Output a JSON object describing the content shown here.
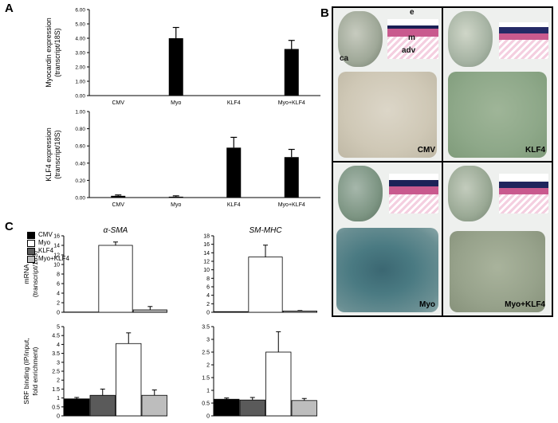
{
  "panels": {
    "a_label": "A",
    "b_label": "B",
    "c_label": "C"
  },
  "colors": {
    "cmv": "#000000",
    "myo": "#ffffff",
    "klf4": "#5a5a5a",
    "myo_klf4": "#bdbdbd"
  },
  "legend": {
    "items": [
      "CMV",
      "Myo",
      "KLF4",
      "Myo+KLF4"
    ]
  },
  "panel_b": {
    "cells": [
      {
        "label": "CMV"
      },
      {
        "label": "KLF4"
      },
      {
        "label": "Myo"
      },
      {
        "label": "Myo+KLF4"
      }
    ],
    "annotations": {
      "e": "e",
      "m": "m",
      "adv": "adv",
      "ca": "ca"
    }
  },
  "chart_data": [
    {
      "id": "a_top",
      "type": "bar",
      "ylabel_line1": "Myocardin expression",
      "ylabel_line2": "(transcript/18S)",
      "categories": [
        "CMV",
        "Myo",
        "KLF4",
        "Myo+KLF4"
      ],
      "values": [
        0.0,
        4.0,
        0.0,
        3.25
      ],
      "errors": [
        0.0,
        0.75,
        0.0,
        0.6
      ],
      "ylim": [
        0,
        6
      ],
      "yticks": [
        "0.00",
        "1.00",
        "2.00",
        "3.00",
        "4.00",
        "5.00",
        "6.00"
      ],
      "ytick_values": [
        0,
        1,
        2,
        3,
        4,
        5,
        6
      ]
    },
    {
      "id": "a_bottom",
      "type": "bar",
      "ylabel_line1": "KLF4 expression",
      "ylabel_line2": "(transcript/18S)",
      "categories": [
        "CMV",
        "Myo",
        "KLF4",
        "Myo+KLF4"
      ],
      "values": [
        0.02,
        0.01,
        0.58,
        0.47
      ],
      "errors": [
        0.01,
        0.01,
        0.12,
        0.09
      ],
      "ylim": [
        0,
        1
      ],
      "yticks": [
        "0.00",
        "0.20",
        "0.40",
        "0.60",
        "0.80",
        "1.00"
      ],
      "ytick_values": [
        0,
        0.2,
        0.4,
        0.6,
        0.8,
        1.0
      ]
    },
    {
      "id": "c_sma_mrna",
      "type": "bar",
      "title": "α-SMA",
      "ylabel_line1": "mRNA",
      "ylabel_line2": "(transcript/18S)",
      "series": [
        {
          "name": "CMV",
          "value": 0.05,
          "error": 0
        },
        {
          "name": "Myo",
          "value": 14.0,
          "error": 0.7
        },
        {
          "name": "Myo+KLF4",
          "value": 0.5,
          "error": 0.7
        }
      ],
      "ylim": [
        0,
        16
      ],
      "yticks": [
        "0",
        "2",
        "4",
        "6",
        "8",
        "10",
        "12",
        "14",
        "16"
      ],
      "ytick_values": [
        0,
        2,
        4,
        6,
        8,
        10,
        12,
        14,
        16
      ]
    },
    {
      "id": "c_smmhc_mrna",
      "type": "bar",
      "title": "SM-MHC",
      "series": [
        {
          "name": "CMV",
          "value": 0.15,
          "error": 0
        },
        {
          "name": "Myo",
          "value": 13.0,
          "error": 2.8
        },
        {
          "name": "Myo+KLF4",
          "value": 0.3,
          "error": 0.1
        }
      ],
      "ylim": [
        0,
        18
      ],
      "yticks": [
        "0",
        "2",
        "4",
        "6",
        "8",
        "10",
        "12",
        "14",
        "16",
        "18"
      ],
      "ytick_values": [
        0,
        2,
        4,
        6,
        8,
        10,
        12,
        14,
        16,
        18
      ]
    },
    {
      "id": "c_sma_srf",
      "type": "bar",
      "ylabel_line1": "SRF binding (IP/input,",
      "ylabel_line2": "fold enrichment)",
      "series": [
        {
          "name": "CMV",
          "value": 0.95,
          "error": 0.08
        },
        {
          "name": "KLF4",
          "value": 1.15,
          "error": 0.35
        },
        {
          "name": "Myo",
          "value": 4.05,
          "error": 0.6
        },
        {
          "name": "Myo+KLF4",
          "value": 1.15,
          "error": 0.3
        }
      ],
      "ylim": [
        0,
        5
      ],
      "yticks": [
        "0",
        "0.5",
        "1",
        "1.5",
        "2",
        "2.5",
        "3",
        "3.5",
        "4",
        "4.5",
        "5"
      ],
      "ytick_values": [
        0,
        0.5,
        1,
        1.5,
        2,
        2.5,
        3,
        3.5,
        4,
        4.5,
        5
      ]
    },
    {
      "id": "c_smmhc_srf",
      "type": "bar",
      "series": [
        {
          "name": "CMV",
          "value": 0.65,
          "error": 0.05
        },
        {
          "name": "KLF4",
          "value": 0.62,
          "error": 0.1
        },
        {
          "name": "Myo",
          "value": 2.5,
          "error": 0.8
        },
        {
          "name": "Myo+KLF4",
          "value": 0.6,
          "error": 0.08
        }
      ],
      "ylim": [
        0,
        3.5
      ],
      "yticks": [
        "0",
        "0.5",
        "1",
        "1.5",
        "2",
        "2.5",
        "3",
        "3.5"
      ],
      "ytick_values": [
        0,
        0.5,
        1,
        1.5,
        2,
        2.5,
        3,
        3.5
      ]
    }
  ]
}
